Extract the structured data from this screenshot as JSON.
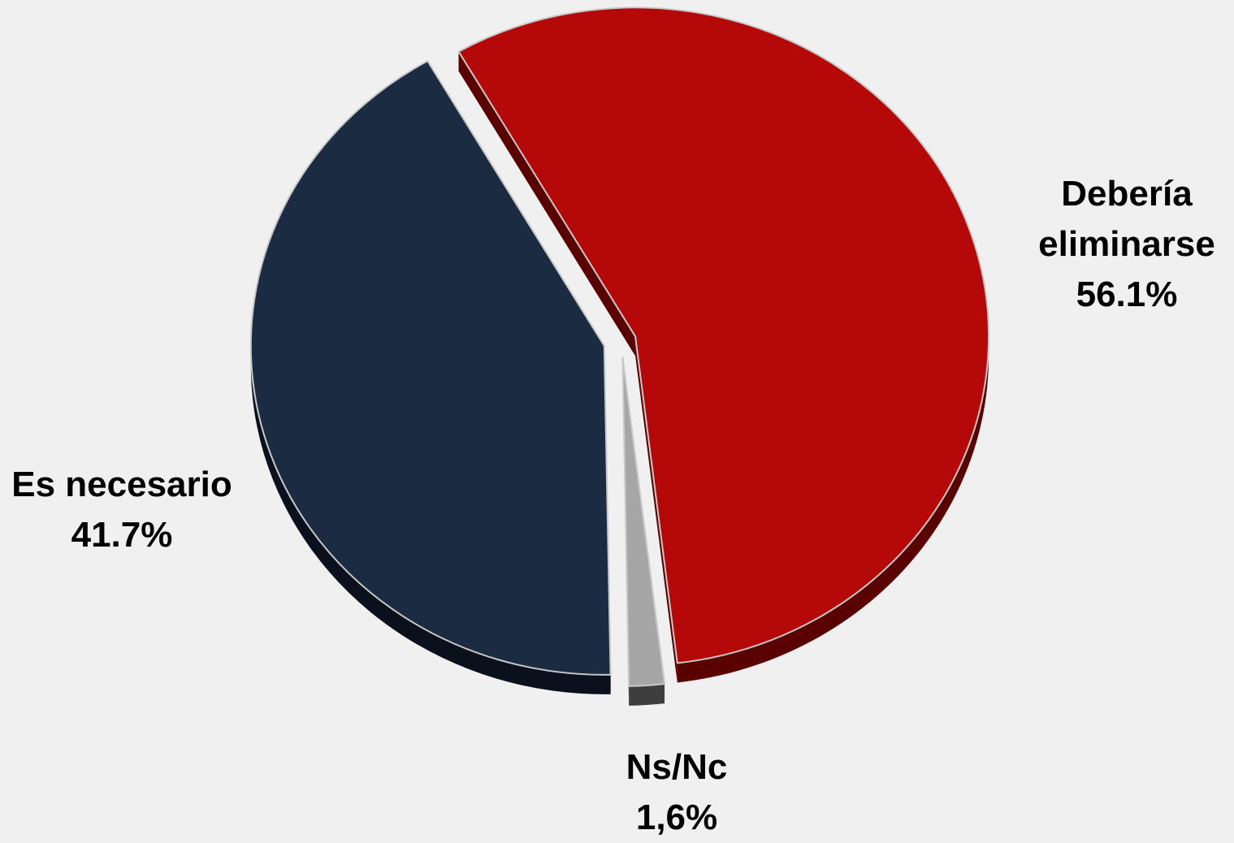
{
  "chart_data": {
    "type": "pie",
    "slices": [
      {
        "label_lines": [
          "Debería",
          "eliminarse"
        ],
        "value_text": "56.1%",
        "value": 56.1,
        "color": "#b50909",
        "side_color": "#5a0202"
      },
      {
        "label_lines": [
          "Ns/Nc"
        ],
        "value_text": "1,6%",
        "value": 1.6,
        "color": "#a6a6a6",
        "side_color": "#3e3e3e"
      },
      {
        "label_lines": [
          "Es necesario"
        ],
        "value_text": "41.7%",
        "value": 41.7,
        "color": "#1a2b42",
        "side_color": "#0a111c"
      }
    ],
    "legend": "none",
    "style": "3d-exploded"
  }
}
